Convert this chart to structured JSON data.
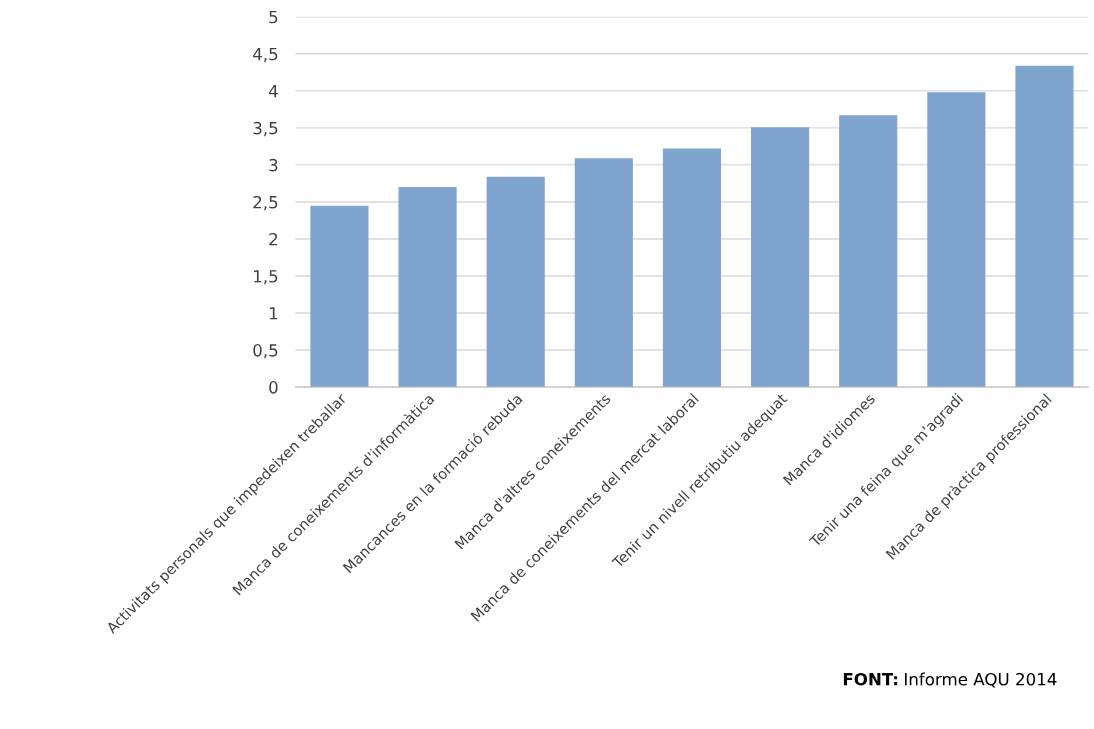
{
  "chart_data": {
    "type": "bar",
    "categories": [
      "Activitats personals que impedeixen treballar",
      "Manca de coneixements d'informàtica",
      "Mancances en la formació rebuda",
      "Manca d'altres coneixements",
      "Manca de coneixements del mercat laboral",
      "Tenir un nivell retributiu adequat",
      "Manca d'idiomes",
      "Tenir una feina que m'agradi",
      "Manca de pràctica professional"
    ],
    "values": [
      2.45,
      2.7,
      2.84,
      3.09,
      3.22,
      3.51,
      3.67,
      3.98,
      4.34
    ],
    "color": "#7fa5cf",
    "ylim": [
      0,
      5
    ],
    "yticks": [
      0,
      {
        "value": 0.5,
        "label": "0,5"
      },
      1,
      {
        "value": 1.5,
        "label": "1,5"
      },
      2,
      {
        "value": 2.5,
        "label": "2,5"
      },
      3,
      {
        "value": 3.5,
        "label": "3,5"
      },
      4,
      {
        "value": 4.5,
        "label": "4,5"
      },
      5
    ],
    "grid": "y",
    "annotations": [
      "FONT: Informe AQU 2014"
    ]
  }
}
